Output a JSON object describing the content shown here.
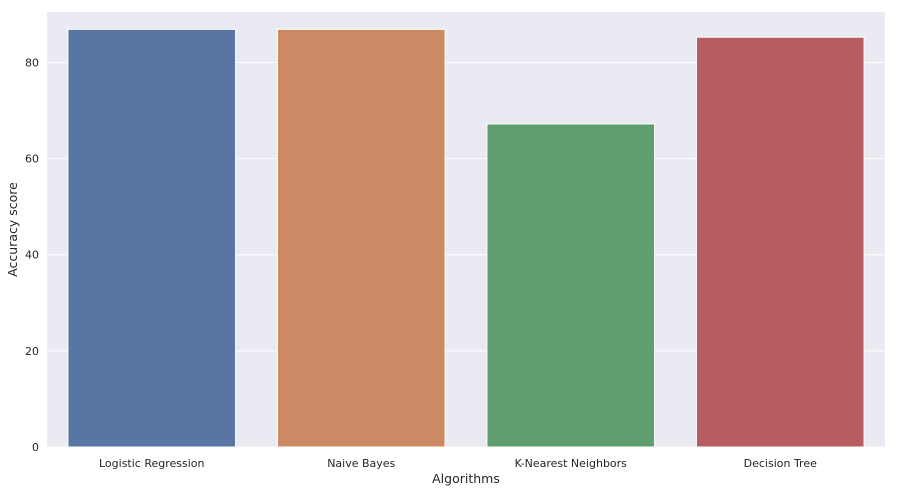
{
  "chart_data": {
    "type": "bar",
    "title": "",
    "xlabel": "Algorithms",
    "ylabel": "Accuracy score",
    "categories": [
      "Logistic Regression",
      "Naive Bayes",
      "K-Nearest Neighbors",
      "Decision Tree"
    ],
    "values": [
      86.89,
      86.89,
      67.21,
      85.25
    ],
    "colors": [
      "#5875a4",
      "#cc8963",
      "#5f9e6e",
      "#b55d60"
    ],
    "background_color": "#eaeaf2",
    "grid_color": "#ffffff",
    "grid": true,
    "legend": "none",
    "ylim": [
      0,
      90.5
    ],
    "yticks": [
      0,
      20,
      40,
      60,
      80
    ],
    "ytick_labels": [
      "0",
      "20",
      "40",
      "60",
      "80"
    ]
  }
}
